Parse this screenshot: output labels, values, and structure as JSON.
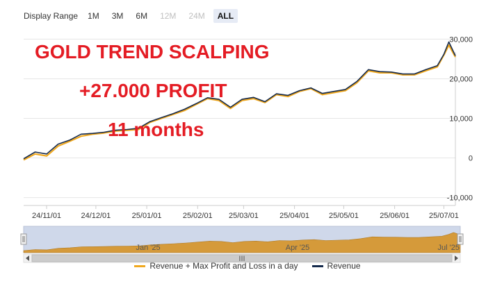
{
  "toolbar": {
    "label": "Display Range",
    "buttons": [
      {
        "label": "1M",
        "state": "enabled"
      },
      {
        "label": "3M",
        "state": "enabled"
      },
      {
        "label": "6M",
        "state": "enabled"
      },
      {
        "label": "12M",
        "state": "disabled"
      },
      {
        "label": "24M",
        "state": "disabled"
      },
      {
        "label": "ALL",
        "state": "selected"
      }
    ]
  },
  "overlay": {
    "line1": "GOLD TREND SCALPING",
    "line2": "+27.000 PROFIT",
    "line3": "11 months"
  },
  "colors": {
    "revenue": "#14294b",
    "max_profit": "#f0a81e",
    "navigator_fill": "#d59a3a",
    "navigator_band": "#cfd8ea",
    "overlay_text": "#e41c24"
  },
  "chart_data": {
    "type": "line",
    "title": "",
    "ylim": [
      -12000,
      32000
    ],
    "y_ticks": [
      -10000,
      0,
      10000,
      20000,
      30000
    ],
    "y_tick_labels": [
      "-10,000",
      "0",
      "10,000",
      "20,000",
      "30,000"
    ],
    "x_tick_labels": [
      "24/11/01",
      "24/12/01",
      "25/01/01",
      "25/02/01",
      "25/03/01",
      "25/04/01",
      "25/05/01",
      "25/06/01",
      "25/07/01"
    ],
    "x": [
      "24/10/18",
      "24/10/25",
      "24/11/01",
      "24/11/08",
      "24/11/15",
      "24/11/22",
      "24/11/29",
      "24/12/06",
      "24/12/13",
      "24/12/20",
      "24/12/27",
      "25/01/03",
      "25/01/10",
      "25/01/17",
      "25/01/24",
      "25/01/31",
      "25/02/07",
      "25/02/14",
      "25/02/21",
      "25/02/28",
      "25/03/07",
      "25/03/14",
      "25/03/21",
      "25/03/28",
      "25/04/04",
      "25/04/11",
      "25/04/18",
      "25/04/25",
      "25/05/02",
      "25/05/09",
      "25/05/16",
      "25/05/23",
      "25/05/30",
      "25/06/06",
      "25/06/13",
      "25/06/20",
      "25/06/27",
      "25/07/01",
      "25/07/04",
      "25/07/08"
    ],
    "series": [
      {
        "name": "Revenue + Max Profit and Loss in a day",
        "values": [
          -500,
          1000,
          500,
          3000,
          4200,
          5500,
          6000,
          6300,
          6800,
          7000,
          7200,
          9000,
          10000,
          11000,
          12000,
          13500,
          15000,
          14500,
          12500,
          14500,
          15000,
          14000,
          16000,
          15500,
          16800,
          17500,
          16000,
          16500,
          17000,
          19000,
          22000,
          21500,
          21500,
          21000,
          21000,
          22000,
          23000,
          26000,
          28500,
          25500
        ]
      },
      {
        "name": "Revenue",
        "values": [
          -200,
          1500,
          1000,
          3500,
          4500,
          6000,
          6200,
          6500,
          7000,
          7200,
          7500,
          9200,
          10200,
          11200,
          12300,
          13700,
          15200,
          14800,
          12800,
          14800,
          15300,
          14200,
          16200,
          15800,
          17000,
          17700,
          16300,
          16800,
          17300,
          19300,
          22300,
          21800,
          21700,
          21200,
          21200,
          22300,
          23300,
          26200,
          29300,
          25800
        ]
      }
    ]
  },
  "navigator": {
    "x_labels": [
      "Jan '25",
      "Apr '25",
      "Jul '25"
    ],
    "scroll_grip": "III"
  }
}
